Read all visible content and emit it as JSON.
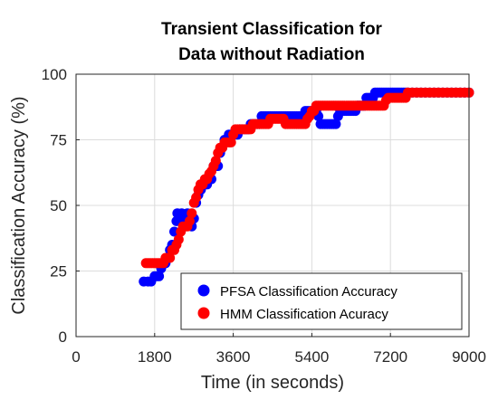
{
  "chart_data": {
    "type": "scatter",
    "title": [
      "Transient Classification for",
      "Data without Radiation"
    ],
    "xlabel": "Time (in seconds)",
    "ylabel": "Classification Accuracy (%)",
    "xlim": [
      0,
      9000
    ],
    "ylim": [
      0,
      100
    ],
    "xticks": [
      "0",
      "1800",
      "3600",
      "5400",
      "7200",
      "9000"
    ],
    "yticks": [
      "0",
      "25",
      "50",
      "75",
      "100"
    ],
    "grid": true,
    "legend_position": "bottom-right",
    "series": [
      {
        "name": "PFSA Classification Accuracy",
        "color": "#0000ff",
        "points": [
          [
            1550,
            21
          ],
          [
            1650,
            21
          ],
          [
            1720,
            21
          ],
          [
            1800,
            23
          ],
          [
            1850,
            23
          ],
          [
            1900,
            23
          ],
          [
            1950,
            26
          ],
          [
            2000,
            28
          ],
          [
            2050,
            28
          ],
          [
            2100,
            30
          ],
          [
            2150,
            33
          ],
          [
            2200,
            35
          ],
          [
            2250,
            40
          ],
          [
            2300,
            44
          ],
          [
            2320,
            47
          ],
          [
            2380,
            45
          ],
          [
            2420,
            47
          ],
          [
            2480,
            42
          ],
          [
            2500,
            44
          ],
          [
            2550,
            47
          ],
          [
            2600,
            45
          ],
          [
            2650,
            42
          ],
          [
            2700,
            45
          ],
          [
            2750,
            51
          ],
          [
            2800,
            54
          ],
          [
            2820,
            56
          ],
          [
            2860,
            56
          ],
          [
            2900,
            58
          ],
          [
            2950,
            58
          ],
          [
            3000,
            58
          ],
          [
            3050,
            60
          ],
          [
            3100,
            60
          ],
          [
            3150,
            65
          ],
          [
            3200,
            65
          ],
          [
            3250,
            65
          ],
          [
            3300,
            70
          ],
          [
            3350,
            72
          ],
          [
            3400,
            75
          ],
          [
            3450,
            75
          ],
          [
            3500,
            77
          ],
          [
            3550,
            77
          ],
          [
            3600,
            77
          ],
          [
            3650,
            77
          ],
          [
            3700,
            77
          ],
          [
            3750,
            79
          ],
          [
            3800,
            79
          ],
          [
            3850,
            79
          ],
          [
            3900,
            79
          ],
          [
            3950,
            79
          ],
          [
            4000,
            81
          ],
          [
            4050,
            81
          ],
          [
            4100,
            81
          ],
          [
            4150,
            81
          ],
          [
            4200,
            81
          ],
          [
            4250,
            84
          ],
          [
            4300,
            84
          ],
          [
            4350,
            84
          ],
          [
            4400,
            84
          ],
          [
            4450,
            84
          ],
          [
            4500,
            84
          ],
          [
            4550,
            84
          ],
          [
            4600,
            84
          ],
          [
            4650,
            84
          ],
          [
            4700,
            84
          ],
          [
            4750,
            84
          ],
          [
            4800,
            84
          ],
          [
            4850,
            84
          ],
          [
            4900,
            84
          ],
          [
            4950,
            84
          ],
          [
            5000,
            84
          ],
          [
            5050,
            84
          ],
          [
            5100,
            84
          ],
          [
            5150,
            84
          ],
          [
            5200,
            84
          ],
          [
            5250,
            86
          ],
          [
            5300,
            86
          ],
          [
            5350,
            86
          ],
          [
            5400,
            86
          ],
          [
            5450,
            86
          ],
          [
            5500,
            86
          ],
          [
            5550,
            84
          ],
          [
            5600,
            81
          ],
          [
            5650,
            81
          ],
          [
            5700,
            81
          ],
          [
            5750,
            81
          ],
          [
            5800,
            81
          ],
          [
            5850,
            81
          ],
          [
            5900,
            81
          ],
          [
            5950,
            81
          ],
          [
            6000,
            84
          ],
          [
            6050,
            86
          ],
          [
            6100,
            86
          ],
          [
            6150,
            86
          ],
          [
            6200,
            86
          ],
          [
            6250,
            86
          ],
          [
            6300,
            86
          ],
          [
            6350,
            86
          ],
          [
            6400,
            86
          ],
          [
            6450,
            88
          ],
          [
            6500,
            88
          ],
          [
            6550,
            88
          ],
          [
            6600,
            88
          ],
          [
            6650,
            91
          ],
          [
            6700,
            91
          ],
          [
            6750,
            91
          ],
          [
            6800,
            91
          ],
          [
            6850,
            93
          ],
          [
            6900,
            93
          ],
          [
            6950,
            93
          ],
          [
            7000,
            93
          ],
          [
            7050,
            93
          ],
          [
            7100,
            93
          ],
          [
            7150,
            93
          ],
          [
            7200,
            93
          ],
          [
            7250,
            93
          ],
          [
            7300,
            93
          ],
          [
            7350,
            93
          ],
          [
            7400,
            93
          ],
          [
            7450,
            93
          ],
          [
            7500,
            93
          ],
          [
            7550,
            93
          ],
          [
            7600,
            93
          ],
          [
            7700,
            93
          ],
          [
            7800,
            93
          ],
          [
            7900,
            93
          ],
          [
            8000,
            93
          ],
          [
            8100,
            93
          ],
          [
            8200,
            93
          ],
          [
            8300,
            93
          ],
          [
            8400,
            93
          ],
          [
            8500,
            93
          ],
          [
            8600,
            93
          ],
          [
            8700,
            93
          ],
          [
            8800,
            93
          ],
          [
            8900,
            93
          ],
          [
            9000,
            93
          ]
        ]
      },
      {
        "name": "HMM Classification Acuracy",
        "color": "#ff0000",
        "points": [
          [
            1600,
            28
          ],
          [
            1650,
            28
          ],
          [
            1700,
            28
          ],
          [
            1750,
            28
          ],
          [
            1800,
            28
          ],
          [
            1850,
            28
          ],
          [
            1900,
            28
          ],
          [
            1950,
            28
          ],
          [
            2000,
            28
          ],
          [
            2050,
            30
          ],
          [
            2100,
            30
          ],
          [
            2150,
            30
          ],
          [
            2200,
            33
          ],
          [
            2250,
            33
          ],
          [
            2300,
            35
          ],
          [
            2350,
            37
          ],
          [
            2400,
            40
          ],
          [
            2450,
            42
          ],
          [
            2500,
            42
          ],
          [
            2550,
            42
          ],
          [
            2600,
            44
          ],
          [
            2650,
            47
          ],
          [
            2700,
            51
          ],
          [
            2750,
            53
          ],
          [
            2800,
            56
          ],
          [
            2850,
            58
          ],
          [
            2900,
            58
          ],
          [
            2950,
            60
          ],
          [
            3000,
            60
          ],
          [
            3050,
            62
          ],
          [
            3100,
            63
          ],
          [
            3150,
            65
          ],
          [
            3200,
            67
          ],
          [
            3250,
            70
          ],
          [
            3300,
            72
          ],
          [
            3350,
            72
          ],
          [
            3400,
            74
          ],
          [
            3450,
            74
          ],
          [
            3500,
            74
          ],
          [
            3550,
            74
          ],
          [
            3600,
            77
          ],
          [
            3650,
            79
          ],
          [
            3700,
            79
          ],
          [
            3750,
            79
          ],
          [
            3800,
            79
          ],
          [
            3850,
            79
          ],
          [
            3900,
            79
          ],
          [
            3950,
            79
          ],
          [
            4000,
            79
          ],
          [
            4050,
            81
          ],
          [
            4100,
            81
          ],
          [
            4150,
            81
          ],
          [
            4200,
            81
          ],
          [
            4250,
            81
          ],
          [
            4300,
            81
          ],
          [
            4350,
            81
          ],
          [
            4400,
            81
          ],
          [
            4450,
            83
          ],
          [
            4500,
            83
          ],
          [
            4550,
            83
          ],
          [
            4600,
            83
          ],
          [
            4650,
            83
          ],
          [
            4700,
            83
          ],
          [
            4750,
            83
          ],
          [
            4800,
            81
          ],
          [
            4850,
            81
          ],
          [
            4900,
            81
          ],
          [
            4950,
            81
          ],
          [
            5000,
            81
          ],
          [
            5050,
            81
          ],
          [
            5100,
            81
          ],
          [
            5150,
            81
          ],
          [
            5200,
            81
          ],
          [
            5250,
            81
          ],
          [
            5300,
            83
          ],
          [
            5350,
            84
          ],
          [
            5400,
            86
          ],
          [
            5450,
            86
          ],
          [
            5500,
            88
          ],
          [
            5550,
            88
          ],
          [
            5600,
            88
          ],
          [
            5650,
            88
          ],
          [
            5700,
            88
          ],
          [
            5750,
            88
          ],
          [
            5800,
            88
          ],
          [
            5850,
            88
          ],
          [
            5900,
            88
          ],
          [
            5950,
            88
          ],
          [
            6000,
            88
          ],
          [
            6050,
            88
          ],
          [
            6100,
            88
          ],
          [
            6150,
            88
          ],
          [
            6200,
            88
          ],
          [
            6250,
            88
          ],
          [
            6300,
            88
          ],
          [
            6350,
            88
          ],
          [
            6400,
            88
          ],
          [
            6450,
            88
          ],
          [
            6500,
            88
          ],
          [
            6550,
            88
          ],
          [
            6600,
            88
          ],
          [
            6650,
            88
          ],
          [
            6700,
            88
          ],
          [
            6750,
            88
          ],
          [
            6800,
            88
          ],
          [
            6850,
            88
          ],
          [
            6900,
            88
          ],
          [
            6950,
            88
          ],
          [
            7000,
            88
          ],
          [
            7050,
            88
          ],
          [
            7100,
            90
          ],
          [
            7150,
            91
          ],
          [
            7200,
            91
          ],
          [
            7250,
            91
          ],
          [
            7300,
            91
          ],
          [
            7350,
            91
          ],
          [
            7400,
            91
          ],
          [
            7450,
            91
          ],
          [
            7500,
            91
          ],
          [
            7550,
            91
          ],
          [
            7600,
            93
          ],
          [
            7700,
            93
          ],
          [
            7800,
            93
          ],
          [
            7900,
            93
          ],
          [
            8000,
            93
          ],
          [
            8100,
            93
          ],
          [
            8200,
            93
          ],
          [
            8300,
            93
          ],
          [
            8400,
            93
          ],
          [
            8500,
            93
          ],
          [
            8600,
            93
          ],
          [
            8700,
            93
          ],
          [
            8800,
            93
          ],
          [
            8900,
            93
          ],
          [
            9000,
            93
          ]
        ]
      }
    ]
  }
}
